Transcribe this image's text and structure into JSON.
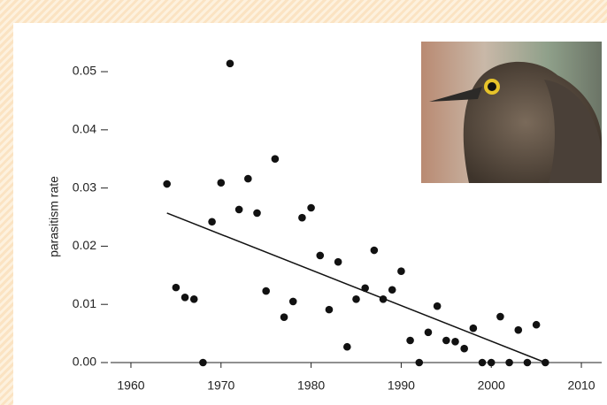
{
  "chart_data": {
    "type": "scatter",
    "y_label": "parasitism rate",
    "x": [
      1964,
      1965,
      1966,
      1967,
      1968,
      1969,
      1970,
      1971,
      1972,
      1973,
      1974,
      1975,
      1976,
      1977,
      1978,
      1979,
      1980,
      1981,
      1982,
      1983,
      1984,
      1985,
      1986,
      1987,
      1988,
      1989,
      1990,
      1991,
      1992,
      1993,
      1994,
      1995,
      1996,
      1997,
      1998,
      1999,
      2000,
      2001,
      2002,
      2003,
      2004,
      2005,
      2006
    ],
    "values": [
      0.0307,
      0.0129,
      0.0112,
      0.0109,
      0.0,
      0.0242,
      0.0309,
      0.0514,
      0.0263,
      0.0316,
      0.0257,
      0.0123,
      0.035,
      0.0078,
      0.0105,
      0.0249,
      0.0266,
      0.0184,
      0.0091,
      0.0173,
      0.0027,
      0.0109,
      0.0128,
      0.0193,
      0.0109,
      0.0125,
      0.0157,
      0.0038,
      0.0,
      0.0052,
      0.0097,
      0.0038,
      0.0036,
      0.0024,
      0.0059,
      0.0,
      0.0,
      0.0079,
      0.0,
      0.0056,
      0.0,
      0.0065,
      0.0
    ],
    "color": "#111111",
    "trend_line": {
      "x": [
        1964,
        2006
      ],
      "y": [
        0.0257,
        0.0
      ],
      "color": "#111111"
    },
    "xlim": [
      1958,
      2012
    ],
    "ylim": [
      0,
      0.053
    ],
    "xticks": [
      1960,
      1970,
      1980,
      1990,
      2000,
      2010
    ],
    "yticks": [
      {
        "value": 0,
        "label": "0.00"
      },
      {
        "value": 0.01,
        "label": "0.01"
      },
      {
        "value": 0.02,
        "label": "0.02"
      },
      {
        "value": 0.03,
        "label": "0.03"
      },
      {
        "value": 0.04,
        "label": "0.04"
      },
      {
        "value": 0.05,
        "label": "0.05"
      }
    ]
  }
}
